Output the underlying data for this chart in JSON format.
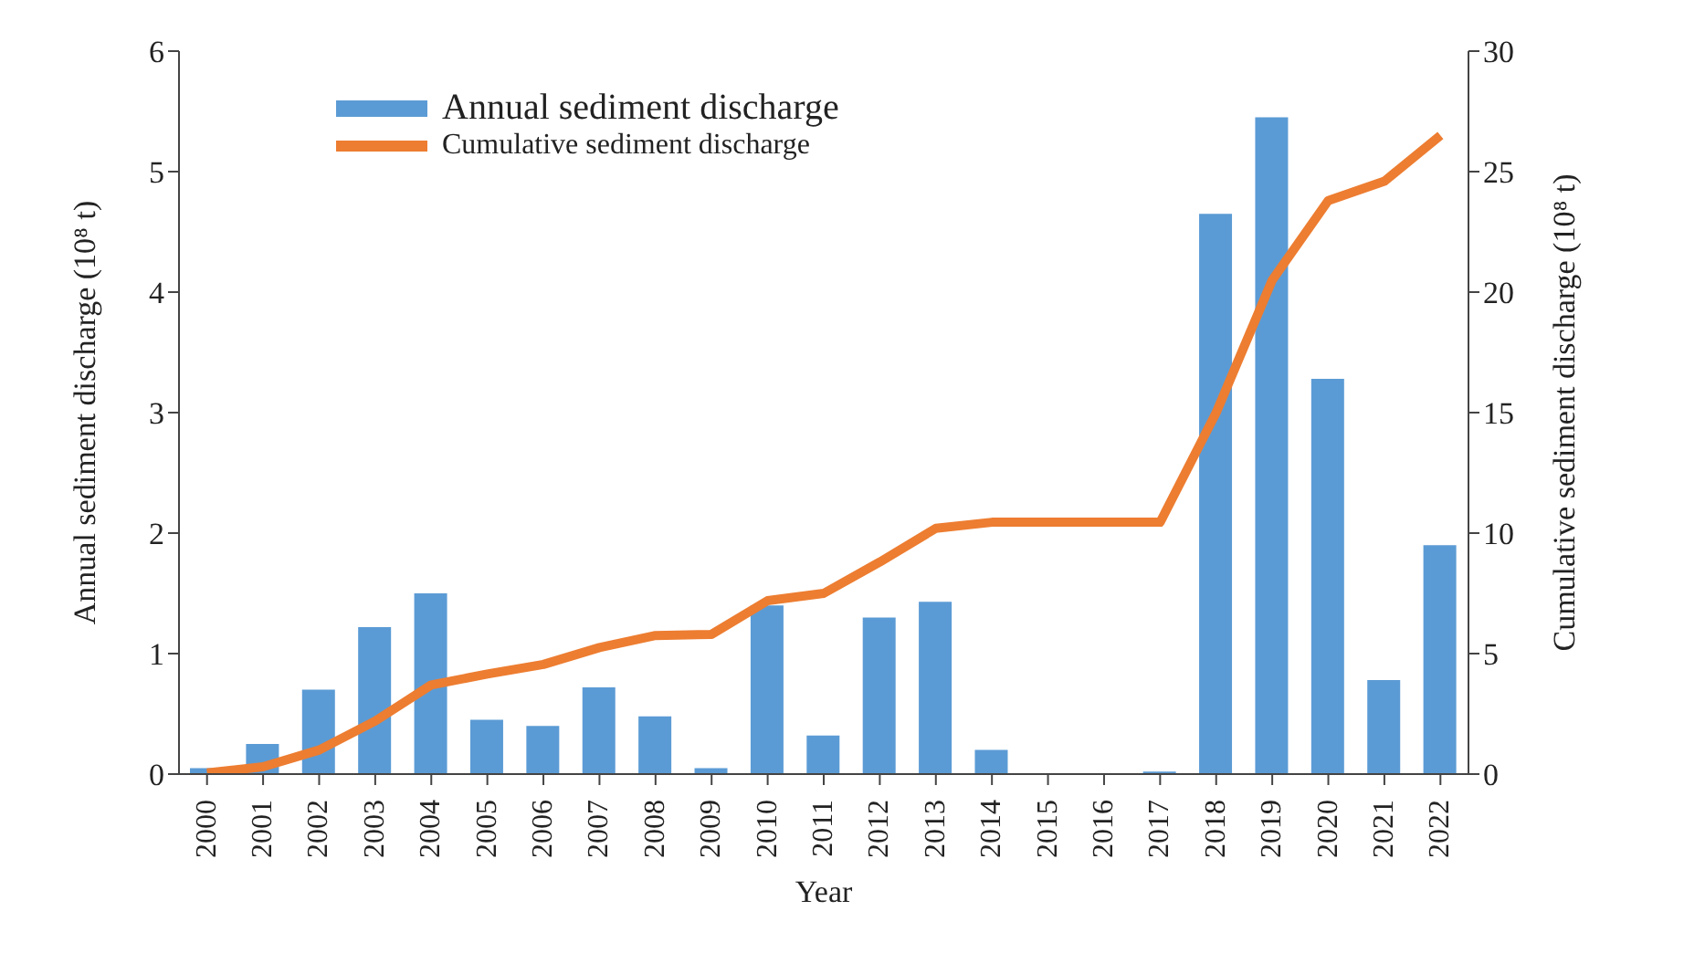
{
  "chart_data": {
    "type": "bar",
    "xlabel": "Year",
    "ylabel": "Annual sediment discharge (10⁸ t)",
    "y2label": "Cumulative sediment discharge (10⁸ t)",
    "categories": [
      "2000",
      "2001",
      "2002",
      "2003",
      "2004",
      "2005",
      "2006",
      "2007",
      "2008",
      "2009",
      "2010",
      "2011",
      "2012",
      "2013",
      "2014",
      "2015",
      "2016",
      "2017",
      "2018",
      "2019",
      "2020",
      "2021",
      "2022"
    ],
    "series": [
      {
        "name": "Annual sediment discharge",
        "color": "#5b9bd5",
        "values": [
          0.05,
          0.25,
          0.7,
          1.22,
          1.5,
          0.45,
          0.4,
          0.72,
          0.48,
          0.05,
          1.4,
          0.32,
          1.3,
          1.43,
          0.2,
          0,
          0,
          0.02,
          4.65,
          5.45,
          3.28,
          0.78,
          1.9
        ]
      },
      {
        "name": "Cumulative sediment discharge",
        "type": "line",
        "axis": "y2",
        "color": "#ed7d31",
        "marker": "none",
        "values": [
          0.05,
          0.3,
          1.0,
          2.2,
          3.7,
          4.15,
          4.55,
          5.25,
          5.75,
          5.8,
          7.2,
          7.5,
          8.8,
          10.2,
          10.45,
          10.45,
          10.45,
          10.45,
          15,
          20.5,
          23.8,
          24.6,
          26.5
        ]
      }
    ],
    "ylim": [
      0,
      6
    ],
    "yticks": [
      0,
      1,
      2,
      3,
      4,
      5,
      6
    ],
    "y2lim": [
      0,
      30
    ],
    "y2ticks": [
      0,
      5,
      10,
      15,
      20,
      25,
      30
    ],
    "grid": false,
    "legend": "top left"
  }
}
